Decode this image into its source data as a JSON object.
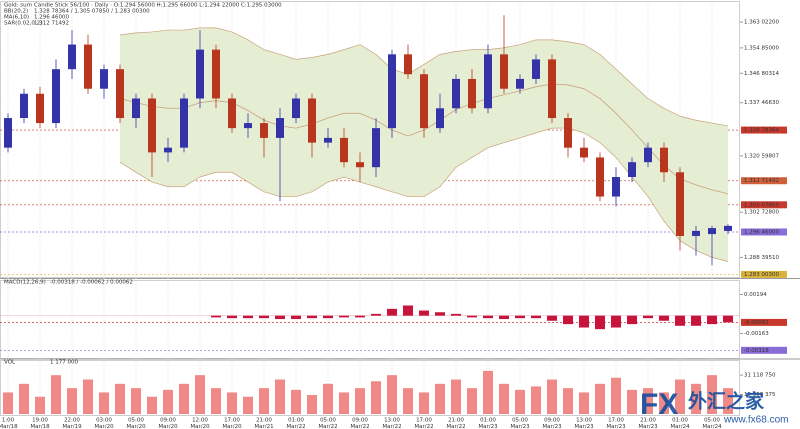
{
  "chart_data": [
    {
      "type": "candlestick",
      "title": "Gold: sum",
      "subtitle": "Candle Stick 56/100 · Daily · O:1.294 56000 H:1.295 66000 L:1.294 22000 C:1.295 03000",
      "categories": [
        "1:00",
        null,
        "19:00",
        null,
        "22:00",
        null,
        "03:00",
        null,
        "05:00",
        null,
        "09:00",
        null,
        "12:00",
        null,
        "17:00",
        null,
        "21:00",
        null,
        "01:00",
        null,
        "05:00",
        null,
        "09:00",
        null,
        "13:00",
        null,
        "17:00",
        null,
        "21:00",
        null,
        "01:00",
        null,
        "05:00",
        null,
        "09:00",
        null,
        "13:00",
        null,
        "17:00",
        null,
        "21:00",
        null,
        "01:00",
        null,
        "05:00",
        null
      ],
      "dates": [
        "Mar/18",
        null,
        "Mar/18",
        null,
        "Mar/19",
        null,
        "Mar/20",
        null,
        "Mar/20",
        null,
        "Mar/20",
        null,
        "Mar/20",
        null,
        "Mar/20",
        null,
        "Mar/21",
        null,
        "Mar/22",
        null,
        "Mar/22",
        null,
        "Mar/22",
        null,
        "Mar/22",
        null,
        "Mar/22",
        null,
        "Mar/22",
        null,
        "Mar/23",
        null,
        "Mar/23",
        null,
        "Mar/23",
        null,
        "Mar/23",
        null,
        "Mar/23",
        null,
        "Mar/23",
        null,
        "Mar/24",
        null,
        "Mar/24",
        null
      ],
      "open": [
        1.3232,
        1.3326,
        1.3403,
        1.331,
        1.3481,
        1.3559,
        1.3419,
        1.3481,
        1.3326,
        1.3388,
        1.3217,
        1.3232,
        1.3388,
        1.3543,
        1.3388,
        1.3294,
        1.331,
        1.3263,
        1.3326,
        1.3388,
        1.3248,
        1.3263,
        1.3186,
        1.317,
        1.3294,
        1.3528,
        1.3465,
        1.3294,
        1.3357,
        1.345,
        1.3357,
        1.3528,
        1.3419,
        1.345,
        1.3512,
        1.3326,
        1.3232,
        1.3201,
        1.3077,
        1.3139,
        1.3186,
        1.3232,
        1.3154,
        1.2952,
        1.2958,
        1.2968
      ],
      "high": [
        1.3341,
        1.3419,
        1.3425,
        1.3512,
        1.3605,
        1.359,
        1.3496,
        1.3496,
        1.3403,
        1.3403,
        1.3263,
        1.3403,
        1.3605,
        1.3559,
        1.3403,
        1.3341,
        1.3326,
        1.3357,
        1.3403,
        1.3403,
        1.3294,
        1.3294,
        1.3217,
        1.3326,
        1.3543,
        1.3559,
        1.3481,
        1.3403,
        1.3465,
        1.3481,
        1.3559,
        1.3652,
        1.3465,
        1.3528,
        1.3528,
        1.3341,
        1.3263,
        1.3217,
        1.317,
        1.3201,
        1.3248,
        1.3248,
        1.317,
        1.2984,
        1.2984,
        1.2989
      ],
      "low": [
        1.3217,
        1.331,
        1.3294,
        1.3294,
        1.345,
        1.3403,
        1.3388,
        1.331,
        1.3294,
        1.3139,
        1.3186,
        1.3217,
        1.3357,
        1.3357,
        1.3279,
        1.3263,
        1.3201,
        1.3062,
        1.331,
        1.3201,
        1.3232,
        1.317,
        1.3123,
        1.3139,
        1.3263,
        1.345,
        1.3263,
        1.3279,
        1.3341,
        1.3341,
        1.3341,
        1.3403,
        1.3403,
        1.3434,
        1.331,
        1.3201,
        1.3186,
        1.3062,
        1.3046,
        1.3123,
        1.317,
        1.3123,
        1.2906,
        1.289,
        1.2859,
        1.2958
      ],
      "close": [
        1.3326,
        1.3403,
        1.331,
        1.3481,
        1.3559,
        1.3419,
        1.3481,
        1.3326,
        1.3388,
        1.3217,
        1.3232,
        1.3388,
        1.3543,
        1.3388,
        1.3294,
        1.331,
        1.3263,
        1.3326,
        1.3388,
        1.3248,
        1.3263,
        1.3186,
        1.317,
        1.3294,
        1.3528,
        1.3465,
        1.3294,
        1.3357,
        1.345,
        1.3357,
        1.3528,
        1.3419,
        1.345,
        1.3512,
        1.3326,
        1.3232,
        1.3201,
        1.3077,
        1.3139,
        1.3186,
        1.3232,
        1.3154,
        1.2952,
        1.2968,
        1.2977,
        1.2984
      ],
      "up_color": "#3434a8",
      "down_color": "#b8361e",
      "bands": {
        "name": "BB(20,2)",
        "label": "1.328 78364 / 1.305 07850 / 1.283 00300",
        "fill": "#e5eed3",
        "color": "#c9a27a",
        "upper": [
          null,
          null,
          null,
          null,
          null,
          null,
          null,
          1.359,
          1.3596,
          1.3599,
          1.3605,
          1.3605,
          1.3612,
          1.3612,
          1.3599,
          1.3574,
          1.3543,
          1.3528,
          1.3512,
          1.3518,
          1.3528,
          1.3543,
          1.3559,
          1.3528,
          1.3481,
          1.3465,
          1.3496,
          1.3528,
          1.3537,
          1.3543,
          1.3543,
          1.3549,
          1.3559,
          1.3574,
          1.3574,
          1.3568,
          1.3559,
          1.3528,
          1.3481,
          1.3434,
          1.3388,
          1.3357,
          1.3332,
          1.3319,
          1.331,
          1.3301
        ],
        "middle": [
          null,
          null,
          null,
          null,
          null,
          null,
          null,
          1.3388,
          1.3375,
          1.3363,
          1.3357,
          1.3357,
          1.3375,
          1.3381,
          1.3375,
          1.335,
          1.3319,
          1.3301,
          1.3294,
          1.3307,
          1.3326,
          1.3341,
          1.3341,
          1.3319,
          1.3288,
          1.3269,
          1.3288,
          1.3319,
          1.3353,
          1.3372,
          1.3388,
          1.34,
          1.3412,
          1.3425,
          1.3434,
          1.3431,
          1.3419,
          1.3388,
          1.3341,
          1.3288,
          1.3232,
          1.3176,
          1.3133,
          1.3114,
          1.3098,
          1.3086
        ],
        "lower": [
          null,
          null,
          null,
          null,
          null,
          null,
          null,
          1.3186,
          1.3154,
          1.3123,
          1.3108,
          1.3108,
          1.3139,
          1.3154,
          1.3154,
          1.3123,
          1.3092,
          1.3077,
          1.3077,
          1.3092,
          1.3123,
          1.3139,
          1.3123,
          1.3108,
          1.3092,
          1.3077,
          1.3077,
          1.3108,
          1.317,
          1.3201,
          1.3232,
          1.3248,
          1.3263,
          1.3279,
          1.3294,
          1.3294,
          1.3279,
          1.3248,
          1.3201,
          1.3139,
          1.3077,
          1.2999,
          1.2937,
          1.2906,
          1.2884,
          1.2871
        ]
      },
      "indicators": [
        {
          "name": "MA(6,10)",
          "label": "1.296 46000",
          "color": "#9b4fb0"
        },
        {
          "name": "SAR(0.02,0.2)",
          "label": "1.312 71492",
          "color": "#c0306a"
        }
      ],
      "ylim": [
        1.2825,
        1.3675
      ],
      "yticks": [
        {
          "value": 1.363022,
          "label": "1.363 02200"
        },
        {
          "value": 1.35485,
          "label": "1.354 85000"
        },
        {
          "value": 1.3468031,
          "label": "1.346 80314"
        },
        {
          "value": 1.3374663,
          "label": "1.337 46630"
        },
        {
          "value": 1.3205981,
          "label": "1.320 59807"
        },
        {
          "value": 1.302728,
          "label": "1.302 72800"
        },
        {
          "value": 1.2883951,
          "label": "1.288 39510"
        }
      ],
      "levels": [
        {
          "value": 1.32878364,
          "label": "1.328 78364",
          "color": "#c8382c"
        },
        {
          "value": 1.31271492,
          "label": "1.312 71492",
          "color": "#d0603a"
        },
        {
          "value": 1.3050785,
          "label": "1.305 07850",
          "color": "#c8382c"
        },
        {
          "value": 1.29646,
          "label": "1.296 46000",
          "color": "#8a6cd8"
        },
        {
          "value": 1.283003,
          "label": "1.283 00300",
          "color": "#d8b23a"
        }
      ],
      "grid": true
    },
    {
      "type": "bar",
      "title": "MACD(12,26,9)",
      "subtitle": "-0.00318 / -0.00062 / 0.00062",
      "values": [
        null,
        null,
        null,
        null,
        null,
        null,
        null,
        null,
        null,
        null,
        null,
        null,
        null,
        -0.00016,
        -0.00023,
        -0.00023,
        -0.00023,
        -0.00031,
        -0.00031,
        -0.00023,
        -0.00023,
        -0.00016,
        -0.00016,
        0.00016,
        0.00062,
        0.00093,
        0.00047,
        0.00031,
        0.00016,
        -0.00016,
        -0.00023,
        -0.00031,
        -0.00023,
        -0.00023,
        -0.00047,
        -0.00078,
        -0.00109,
        -0.00124,
        -0.00109,
        -0.00078,
        -0.00023,
        -0.00047,
        -0.00093,
        -0.00093,
        -0.00078,
        -0.00062
      ],
      "color": "#c8143c",
      "ylim": [
        -0.0037,
        0.0029
      ],
      "yticks": [
        0.00194,
        -0.00163
      ],
      "levels": [
        {
          "value": -0.00062,
          "label": "-0.00062",
          "color": "#c8382c"
        },
        {
          "value": -0.00318,
          "label": "-0.00318",
          "color": "#8a6cd8"
        }
      ]
    },
    {
      "type": "bar",
      "title": "VOL",
      "subtitle": "1 177 000",
      "values": [
        17250000,
        24150000,
        13800000,
        31050000,
        20700000,
        27600000,
        17250000,
        24150000,
        20700000,
        13800000,
        19320000,
        24150000,
        31050000,
        20700000,
        17250000,
        13800000,
        20700000,
        27600000,
        19320000,
        15180000,
        24150000,
        17250000,
        20700000,
        26220000,
        31050000,
        20700000,
        17250000,
        24150000,
        27600000,
        20700000,
        34500000,
        24150000,
        19320000,
        22080000,
        27600000,
        20700000,
        17250000,
        24150000,
        28980000,
        19320000,
        20700000,
        17250000,
        27600000,
        24150000,
        31050000,
        20700000
      ],
      "color": "#f08a86",
      "ylim": [
        0,
        40000000
      ],
      "yticks": [
        {
          "value": 31118750,
          "label": "31 118 750"
        },
        {
          "value": 15559375,
          "label": "15 559 375"
        }
      ]
    }
  ],
  "watermark": {
    "logo": "FX",
    "name": "外汇之家",
    "url": "www.fx68.com"
  }
}
